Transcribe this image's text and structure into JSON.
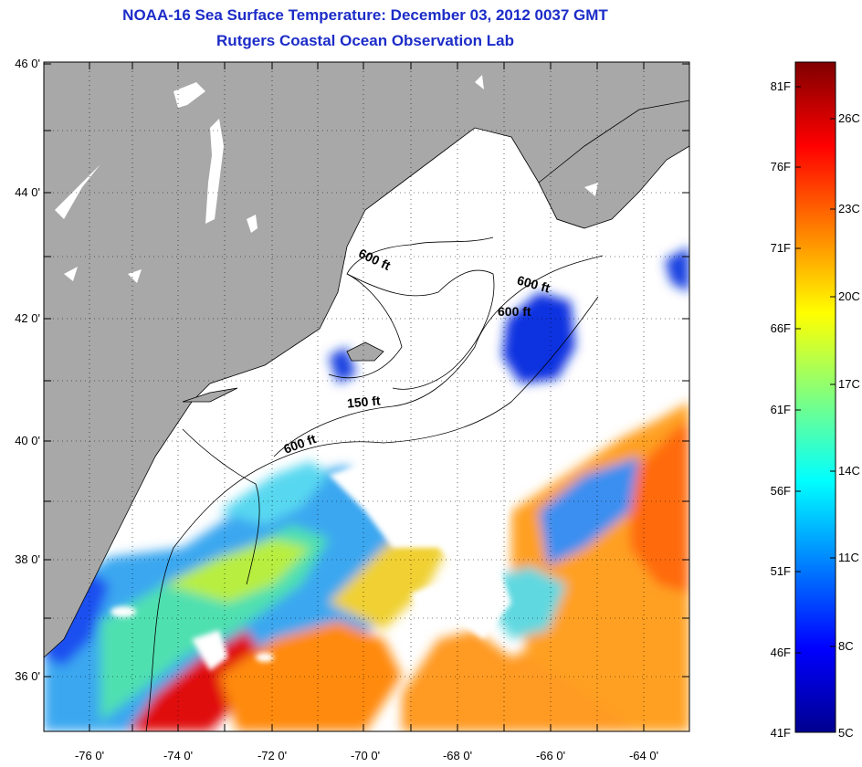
{
  "title": "NOAA-16 Sea Surface Temperature:  December 03, 2012 0037 GMT",
  "subtitle": "Rutgers Coastal Ocean Observation Lab",
  "colors": {
    "land": "#a8a8a8",
    "no_data": "#ffffff",
    "title": "#1c2cc8"
  },
  "axes": {
    "lat_labels": [
      "46 0'",
      "44 0'",
      "42 0'",
      "40 0'",
      "38 0'",
      "36 0'"
    ],
    "lon_labels": [
      "-76 0'",
      "-74 0'",
      "-72 0'",
      "-70 0'",
      "-68 0'",
      "-66 0'",
      "-64 0'"
    ],
    "lat_range": [
      35,
      46
    ],
    "lon_range": [
      -77,
      -63.5
    ],
    "grid": "dotted"
  },
  "contour_labels": [
    "600 ft",
    "600 ft",
    "600 ft",
    "150 ft",
    "600 ft"
  ],
  "colorbar": {
    "fahrenheit_labels": [
      "81F",
      "76F",
      "71F",
      "66F",
      "61F",
      "56F",
      "51F",
      "46F",
      "41F"
    ],
    "celsius_labels": [
      "26C",
      "23C",
      "20C",
      "17C",
      "14C",
      "11C",
      "8C",
      "5C"
    ],
    "colormap": "jet"
  }
}
